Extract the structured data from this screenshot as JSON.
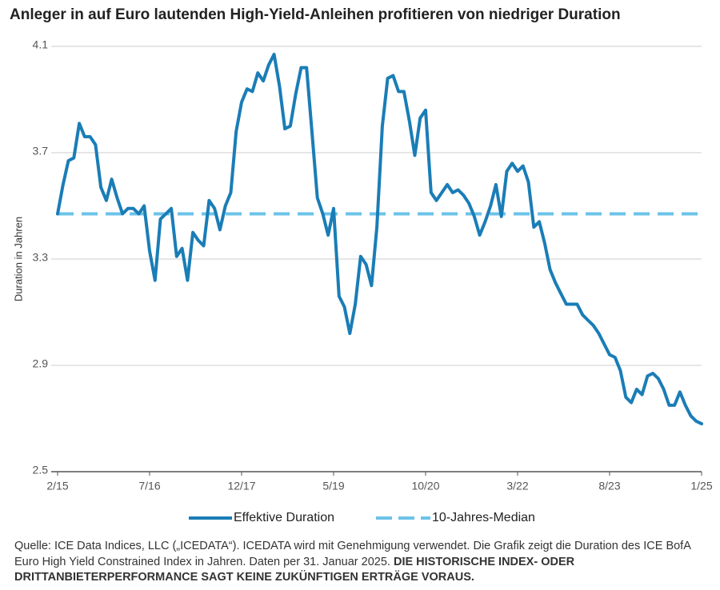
{
  "chart_data": {
    "type": "line",
    "title": "Anleger in auf Euro lautenden High-Yield-Anleihen profitieren von niedriger Duration",
    "y_label": "Duration in Jahren",
    "x": [
      "2015-02",
      "2015-03",
      "2015-04",
      "2015-05",
      "2015-06",
      "2015-07",
      "2015-08",
      "2015-09",
      "2015-10",
      "2015-11",
      "2015-12",
      "2016-01",
      "2016-02",
      "2016-03",
      "2016-04",
      "2016-05",
      "2016-06",
      "2016-07",
      "2016-08",
      "2016-09",
      "2016-10",
      "2016-11",
      "2016-12",
      "2017-01",
      "2017-02",
      "2017-03",
      "2017-04",
      "2017-05",
      "2017-06",
      "2017-07",
      "2017-08",
      "2017-09",
      "2017-10",
      "2017-11",
      "2017-12",
      "2018-01",
      "2018-02",
      "2018-03",
      "2018-04",
      "2018-05",
      "2018-06",
      "2018-07",
      "2018-08",
      "2018-09",
      "2018-10",
      "2018-11",
      "2018-12",
      "2019-01",
      "2019-02",
      "2019-03",
      "2019-04",
      "2019-05",
      "2019-06",
      "2019-07",
      "2019-08",
      "2019-09",
      "2019-10",
      "2019-11",
      "2019-12",
      "2020-01",
      "2020-02",
      "2020-03",
      "2020-04",
      "2020-05",
      "2020-06",
      "2020-07",
      "2020-08",
      "2020-09",
      "2020-10",
      "2020-11",
      "2020-12",
      "2021-01",
      "2021-02",
      "2021-03",
      "2021-04",
      "2021-05",
      "2021-06",
      "2021-07",
      "2021-08",
      "2021-09",
      "2021-10",
      "2021-11",
      "2021-12",
      "2022-01",
      "2022-02",
      "2022-03",
      "2022-04",
      "2022-05",
      "2022-06",
      "2022-07",
      "2022-08",
      "2022-09",
      "2022-10",
      "2022-11",
      "2022-12",
      "2023-01",
      "2023-02",
      "2023-03",
      "2023-04",
      "2023-05",
      "2023-06",
      "2023-07",
      "2023-08",
      "2023-09",
      "2023-10",
      "2023-11",
      "2023-12",
      "2024-01",
      "2024-02",
      "2024-03",
      "2024-04",
      "2024-05",
      "2024-06",
      "2024-07",
      "2024-08",
      "2024-09",
      "2024-10",
      "2024-11",
      "2024-12",
      "2025-01"
    ],
    "series": [
      {
        "name": "Effektive Duration",
        "color": "#1a7db6",
        "values": [
          3.47,
          3.58,
          3.67,
          3.68,
          3.81,
          3.76,
          3.76,
          3.73,
          3.57,
          3.52,
          3.6,
          3.53,
          3.47,
          3.49,
          3.49,
          3.47,
          3.5,
          3.33,
          3.22,
          3.45,
          3.47,
          3.49,
          3.31,
          3.34,
          3.22,
          3.4,
          3.37,
          3.35,
          3.52,
          3.49,
          3.41,
          3.5,
          3.55,
          3.78,
          3.89,
          3.94,
          3.93,
          4.0,
          3.97,
          4.03,
          4.07,
          3.95,
          3.79,
          3.8,
          3.92,
          4.02,
          4.02,
          3.78,
          3.53,
          3.47,
          3.39,
          3.49,
          3.16,
          3.12,
          3.02,
          3.13,
          3.31,
          3.28,
          3.2,
          3.42,
          3.8,
          3.98,
          3.99,
          3.93,
          3.93,
          3.82,
          3.69,
          3.83,
          3.86,
          3.55,
          3.52,
          3.55,
          3.58,
          3.55,
          3.56,
          3.54,
          3.51,
          3.46,
          3.39,
          3.44,
          3.5,
          3.58,
          3.46,
          3.63,
          3.66,
          3.63,
          3.65,
          3.59,
          3.42,
          3.44,
          3.36,
          3.26,
          3.21,
          3.17,
          3.13,
          3.13,
          3.13,
          3.09,
          3.07,
          3.05,
          3.02,
          2.98,
          2.94,
          2.93,
          2.88,
          2.78,
          2.76,
          2.81,
          2.79,
          2.86,
          2.87,
          2.85,
          2.81,
          2.75,
          2.75,
          2.8,
          2.75,
          2.71,
          2.69,
          2.68
        ]
      }
    ],
    "median": {
      "name": "10-Jahres-Median",
      "color": "#6cc3e8",
      "value": 3.47
    },
    "xlim": [
      "2015-02",
      "2025-01"
    ],
    "xticks": [
      {
        "value": "2015-02",
        "label": "2/15"
      },
      {
        "value": "2016-07",
        "label": "7/16"
      },
      {
        "value": "2017-12",
        "label": "12/17"
      },
      {
        "value": "2019-05",
        "label": "5/19"
      },
      {
        "value": "2020-10",
        "label": "10/20"
      },
      {
        "value": "2022-03",
        "label": "3/22"
      },
      {
        "value": "2023-08",
        "label": "8/23"
      },
      {
        "value": "2025-01",
        "label": "1/25"
      }
    ],
    "ylim": [
      2.5,
      4.1
    ],
    "yticks": [
      2.5,
      2.9,
      3.3,
      3.7,
      4.1
    ],
    "grid": true,
    "legend": "bottom",
    "source": "Quelle: ICE Data Indices, LLC („ICEDATA“). ICEDATA wird mit Genehmigung verwendet. Die Grafik zeigt die Duration des ICE BofA Euro High Yield Constrained Index in Jahren. Daten per 31. Januar 2025.",
    "disclaimer": "DIE HISTORISCHE INDEX- ODER DRITTANBIETERPERFORMANCE SAGT KEINE ZUKÜNFTIGEN ERTRÄGE VORAUS."
  }
}
